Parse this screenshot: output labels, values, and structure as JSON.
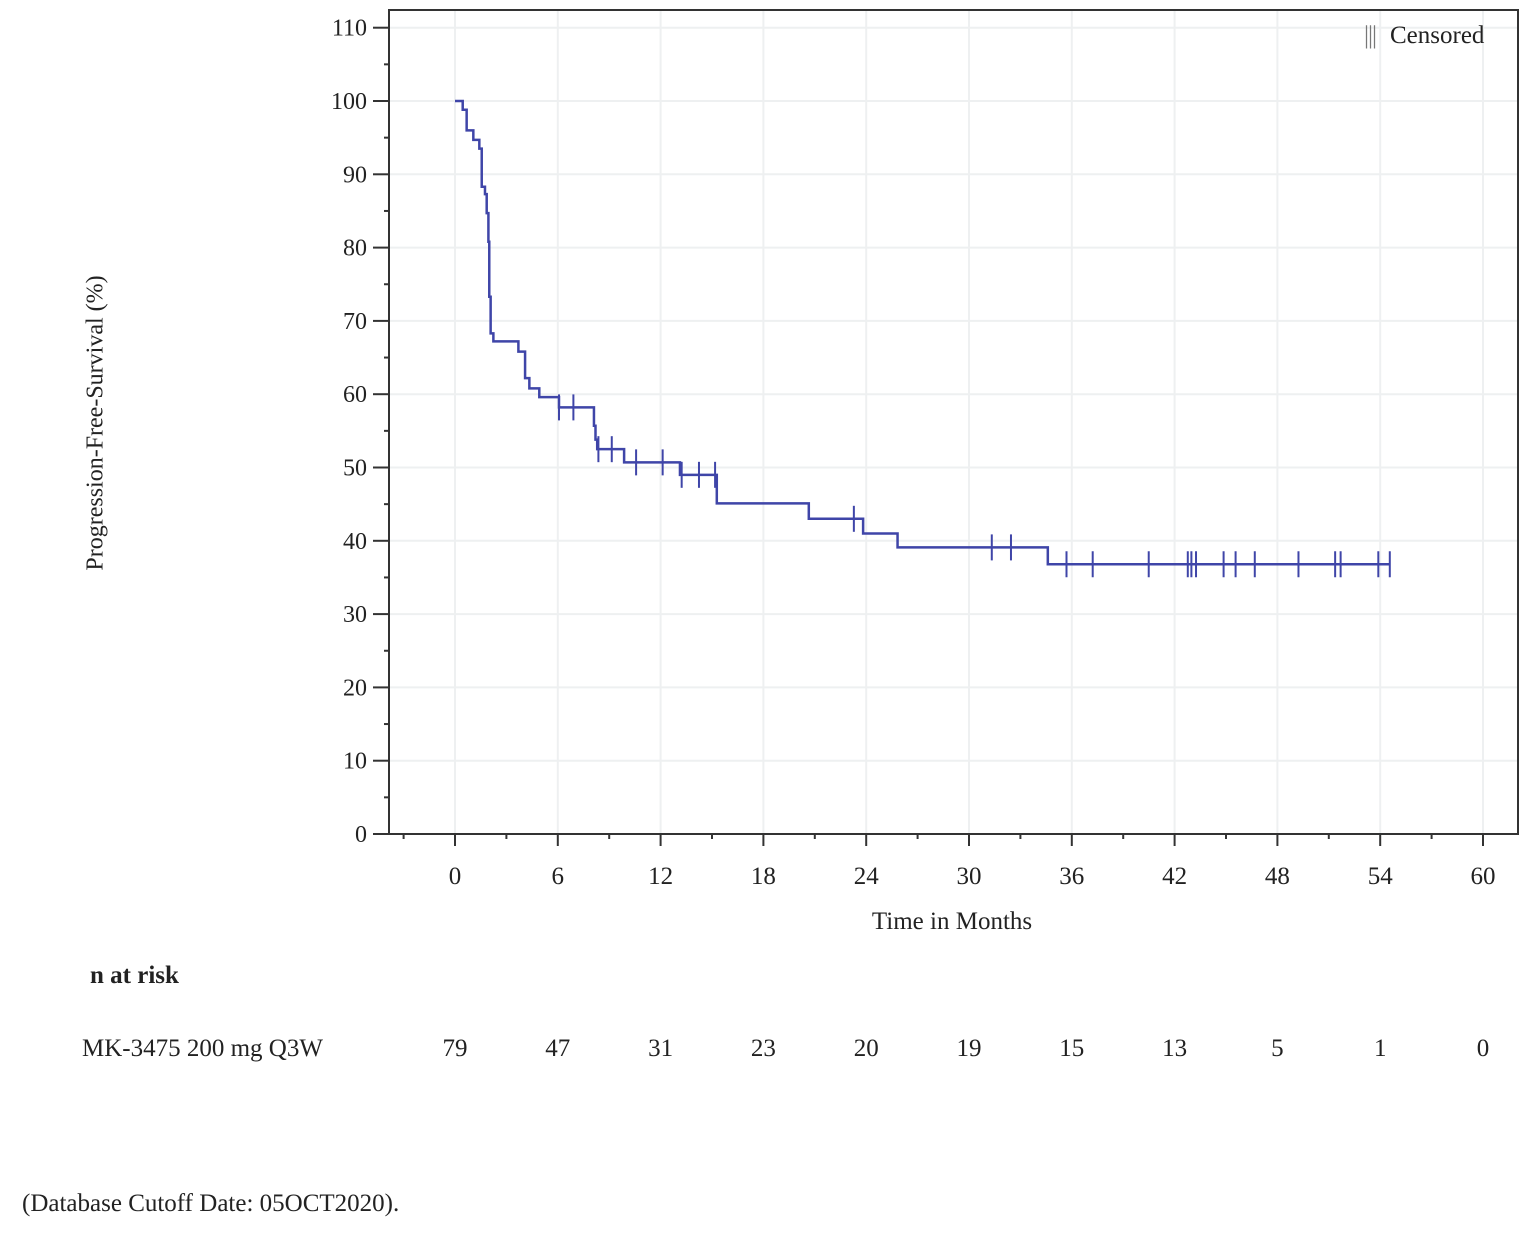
{
  "chart_data": {
    "type": "line",
    "subtype": "kaplan-meier step",
    "xlabel": "Time in Months",
    "ylabel": "Progression-Free-Survival (%)",
    "xlim": [
      0,
      60
    ],
    "ylim": [
      0,
      110
    ],
    "xticks": [
      0,
      6,
      12,
      18,
      24,
      30,
      36,
      42,
      48,
      54,
      60
    ],
    "yticks": [
      0,
      10,
      20,
      30,
      40,
      50,
      60,
      70,
      80,
      90,
      100,
      110
    ],
    "grid": true,
    "legend": {
      "position": "top-right",
      "symbol": "|||",
      "label": "Censored"
    },
    "series": [
      {
        "name": "MK-3475 200 mg Q3W",
        "color": "#3f45a8",
        "steps": [
          [
            0,
            100
          ],
          [
            0.45,
            98.8
          ],
          [
            0.68,
            96.0
          ],
          [
            1.07,
            94.7
          ],
          [
            1.42,
            93.5
          ],
          [
            1.56,
            88.3
          ],
          [
            1.75,
            87.3
          ],
          [
            1.85,
            84.7
          ],
          [
            1.95,
            80.8
          ],
          [
            2.0,
            73.3
          ],
          [
            2.08,
            68.3
          ],
          [
            2.24,
            67.2
          ],
          [
            3.7,
            65.8
          ],
          [
            4.09,
            62.2
          ],
          [
            4.34,
            60.8
          ],
          [
            4.92,
            59.6
          ],
          [
            6.07,
            58.2
          ],
          [
            8.11,
            55.7
          ],
          [
            8.2,
            53.8
          ],
          [
            8.3,
            52.5
          ],
          [
            9.87,
            50.7
          ],
          [
            13.13,
            49.0
          ],
          [
            15.28,
            45.1
          ],
          [
            20.65,
            43.0
          ],
          [
            23.82,
            41.0
          ],
          [
            25.83,
            39.1
          ],
          [
            34.6,
            36.8
          ]
        ],
        "end_time": 54.56,
        "censored_times": [
          6.07,
          6.91,
          8.37,
          9.15,
          10.57,
          12.12,
          13.23,
          14.24,
          15.18,
          23.28,
          31.33,
          32.45,
          35.69,
          37.22,
          40.49,
          42.77,
          42.98,
          43.25,
          44.86,
          45.56,
          46.68,
          49.23,
          51.37,
          51.69,
          53.89,
          54.56
        ]
      }
    ],
    "risk_table": {
      "title": "n at risk",
      "rows": [
        {
          "label": "MK-3475 200 mg Q3W",
          "values": [
            79,
            47,
            31,
            23,
            20,
            19,
            15,
            13,
            5,
            1,
            0
          ]
        }
      ]
    }
  },
  "footnote": "(Database Cutoff Date: 05OCT2020)."
}
